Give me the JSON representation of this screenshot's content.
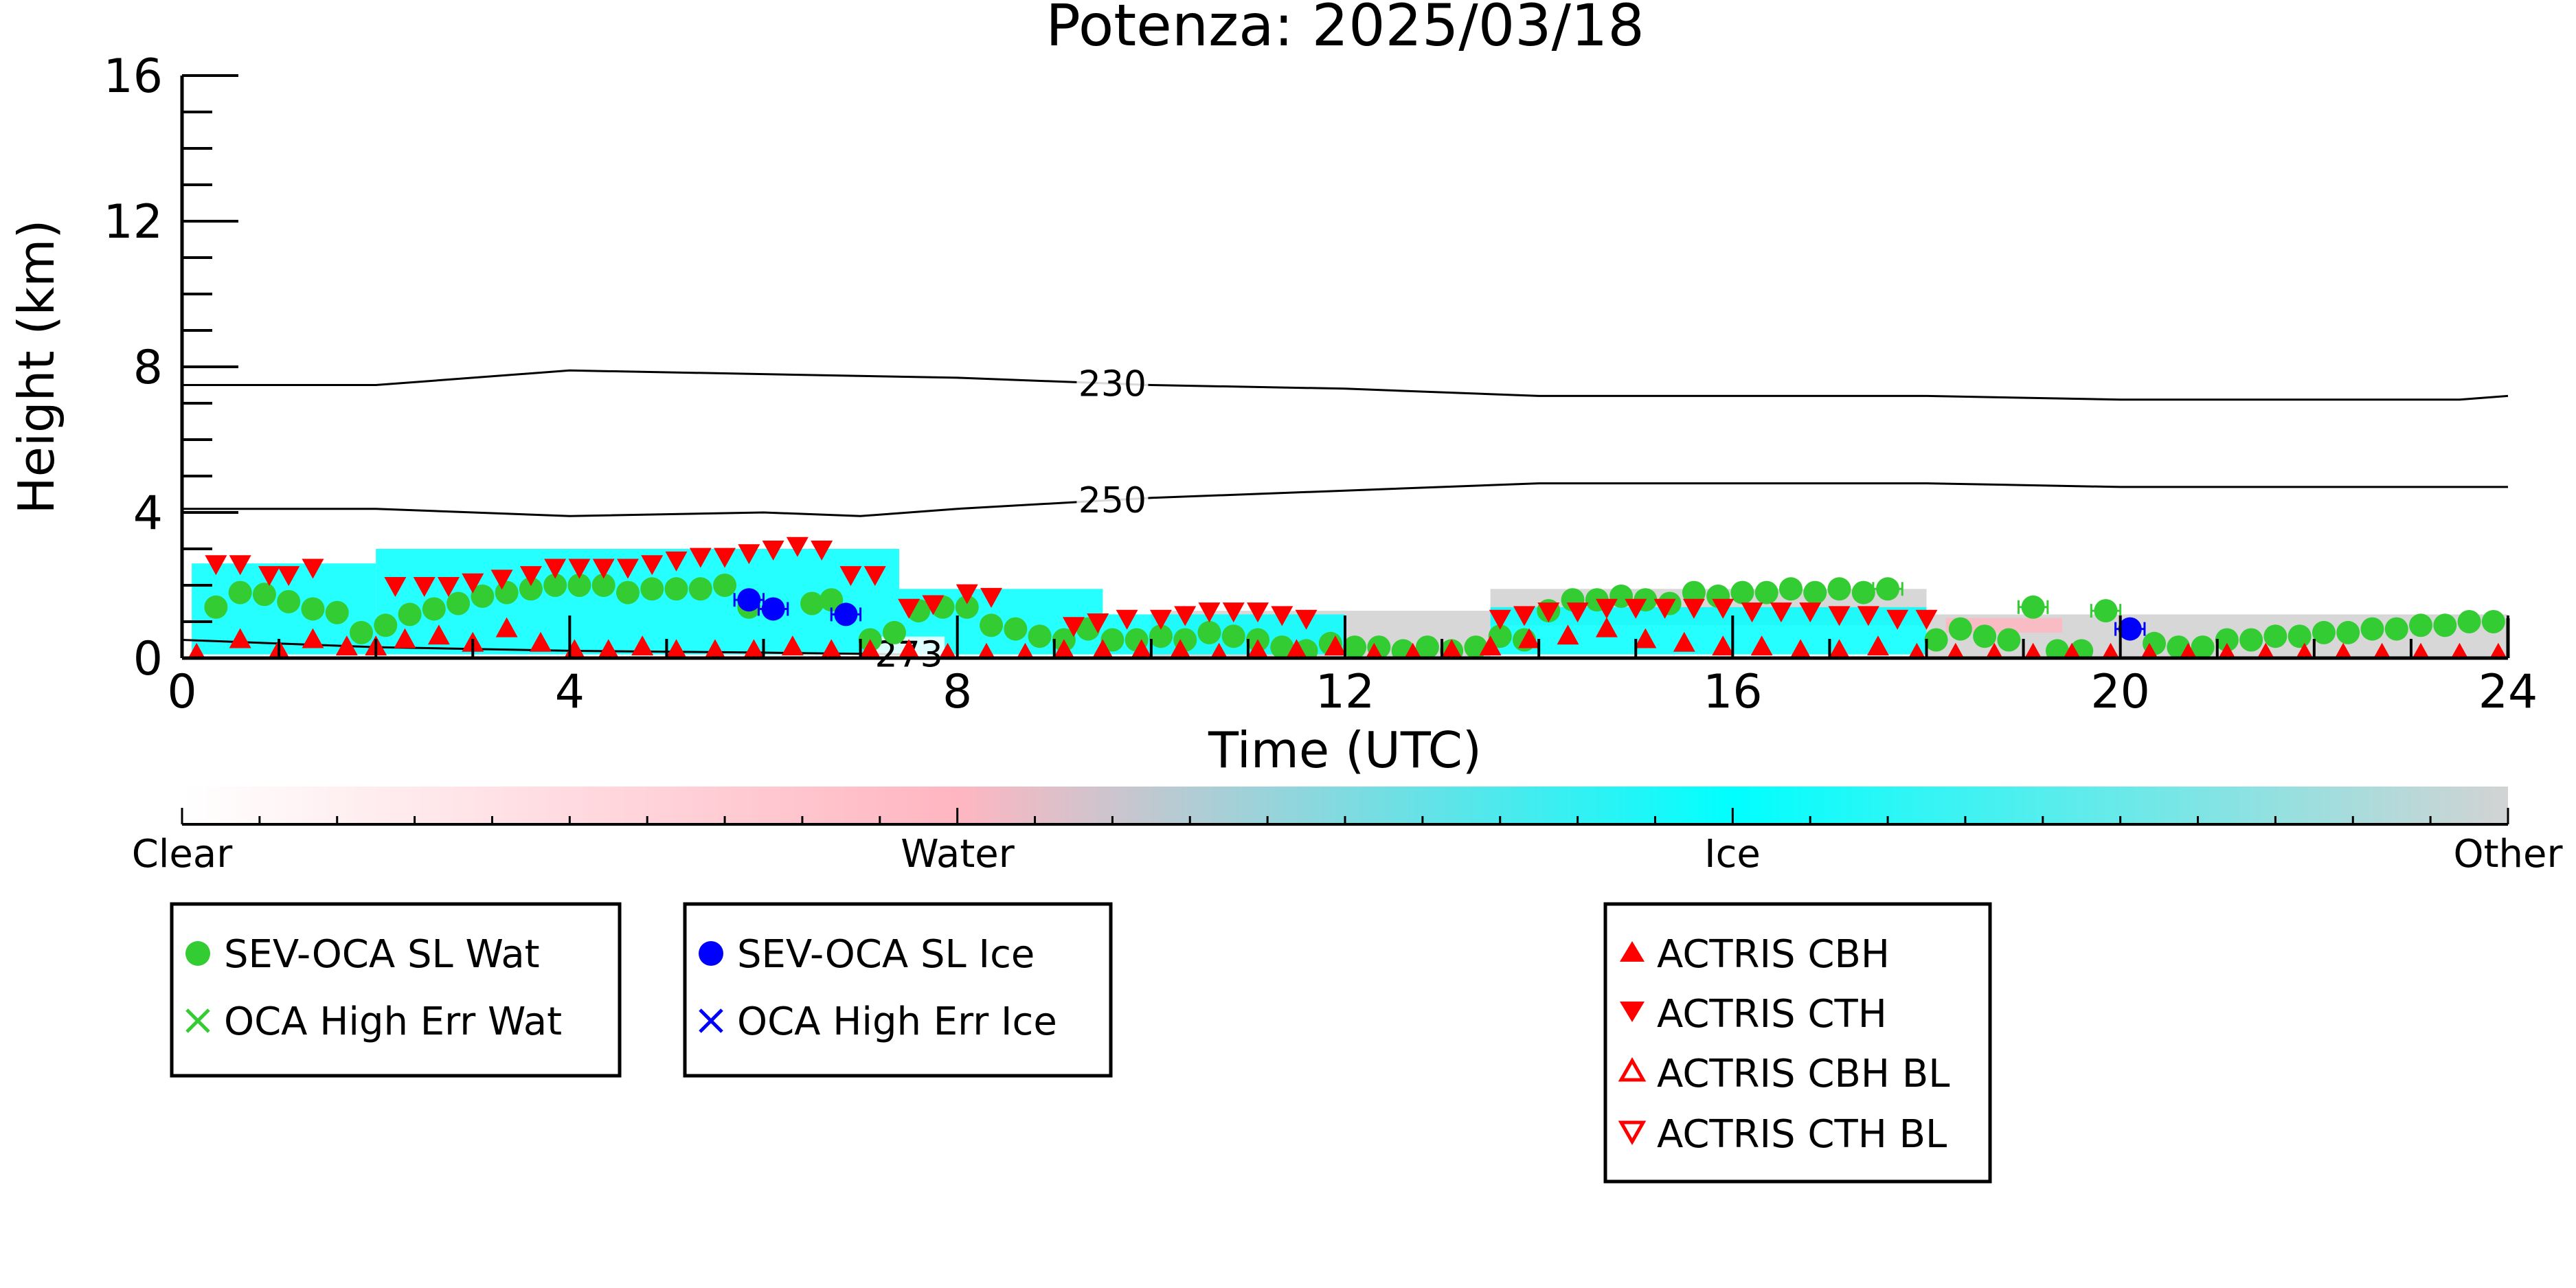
{
  "chart_data": {
    "type": "scatter",
    "title": "Potenza: 2025/03/18",
    "xlabel": "Time (UTC)",
    "ylabel": "Height (km)",
    "xlim": [
      0,
      24
    ],
    "ylim": [
      0,
      16
    ],
    "xticks": [
      0,
      4,
      8,
      12,
      16,
      20,
      24
    ],
    "yticks": [
      0,
      4,
      8,
      12,
      16
    ],
    "xtick_labels": [
      "0",
      "4",
      "8",
      "12",
      "16",
      "20",
      "24"
    ],
    "ytick_labels": [
      "0",
      "4",
      "8",
      "12",
      "16"
    ],
    "contours": [
      {
        "label": "230",
        "label_x": 9.6,
        "x": [
          0,
          2,
          4,
          6,
          8,
          10,
          12,
          14,
          16,
          18,
          20,
          22,
          23.5,
          24
        ],
        "y": [
          7.5,
          7.5,
          7.9,
          7.8,
          7.7,
          7.5,
          7.4,
          7.2,
          7.2,
          7.2,
          7.1,
          7.1,
          7.1,
          7.2
        ]
      },
      {
        "label": "250",
        "label_x": 9.6,
        "x": [
          0,
          2,
          4,
          6,
          7,
          8,
          10,
          12,
          14,
          16,
          18,
          20,
          22,
          24
        ],
        "y": [
          4.1,
          4.1,
          3.9,
          4.0,
          3.9,
          4.1,
          4.4,
          4.6,
          4.8,
          4.8,
          4.8,
          4.7,
          4.7,
          4.7
        ]
      },
      {
        "label": "273",
        "label_x": 7.5,
        "x": [
          0,
          2,
          4,
          6,
          7.5
        ],
        "y": [
          0.5,
          0.3,
          0.2,
          0.15,
          0.1
        ]
      }
    ],
    "cloud_mask": [
      {
        "phase": "Ice",
        "x": [
          0.1,
          2.0
        ],
        "y": [
          0.1,
          2.6
        ]
      },
      {
        "phase": "Ice",
        "x": [
          2.0,
          7.4
        ],
        "y": [
          0.1,
          3.0
        ]
      },
      {
        "phase": "Ice",
        "x": [
          7.4,
          9.5
        ],
        "y": [
          0.1,
          1.9
        ]
      },
      {
        "phase": "Ice",
        "x": [
          9.5,
          12.0
        ],
        "y": [
          0.1,
          1.2
        ]
      },
      {
        "phase": "Ice",
        "x": [
          13.5,
          18.0
        ],
        "y": [
          0.1,
          1.4
        ]
      },
      {
        "phase": "Other",
        "x": [
          10.0,
          13.5
        ],
        "y": [
          0.0,
          1.3
        ]
      },
      {
        "phase": "Other",
        "x": [
          13.5,
          18.0
        ],
        "y": [
          0.9,
          1.9
        ]
      },
      {
        "phase": "Other",
        "x": [
          18.0,
          24.0
        ],
        "y": [
          0.0,
          1.2
        ]
      },
      {
        "phase": "Water",
        "x": [
          18.2,
          19.4
        ],
        "y": [
          0.7,
          1.1
        ]
      }
    ],
    "series": [
      {
        "name": "SEV-OCA SL Wat",
        "marker": "circle",
        "color": "#33cc33",
        "x": [
          0.35,
          0.6,
          0.85,
          1.1,
          1.35,
          1.6,
          1.85,
          2.1,
          2.35,
          2.6,
          2.85,
          3.1,
          3.35,
          3.6,
          3.85,
          4.1,
          4.35,
          4.6,
          4.85,
          5.1,
          5.35,
          5.6,
          5.85,
          6.5,
          6.7,
          7.1,
          7.35,
          7.6,
          7.85,
          8.1,
          8.35,
          8.6,
          8.85,
          9.1,
          9.35,
          9.6,
          9.85,
          10.1,
          10.35,
          10.6,
          10.85,
          11.1,
          11.35,
          11.6,
          11.85,
          12.1,
          12.35,
          12.6,
          12.85,
          13.1,
          13.35,
          13.6,
          13.85,
          14.1,
          14.35,
          14.6,
          14.85,
          15.1,
          15.35,
          15.6,
          15.85,
          16.1,
          16.35,
          16.6,
          16.85,
          17.1,
          17.35,
          17.6,
          18.1,
          18.35,
          18.6,
          18.85,
          19.1,
          19.35,
          19.6,
          19.85,
          20.35,
          20.6,
          20.85,
          21.1,
          21.35,
          21.6,
          21.85,
          22.1,
          22.35,
          22.6,
          22.85,
          23.1,
          23.35,
          23.6,
          23.85
        ],
        "y": [
          1.4,
          1.8,
          1.75,
          1.55,
          1.35,
          1.25,
          0.7,
          0.9,
          1.2,
          1.35,
          1.5,
          1.7,
          1.8,
          1.9,
          2.0,
          2.0,
          2.0,
          1.8,
          1.9,
          1.9,
          1.9,
          2.0,
          1.4,
          1.5,
          1.6,
          0.5,
          0.7,
          1.3,
          1.4,
          1.4,
          0.9,
          0.8,
          0.6,
          0.5,
          0.8,
          0.5,
          0.5,
          0.6,
          0.5,
          0.7,
          0.6,
          0.5,
          0.3,
          0.2,
          0.4,
          0.3,
          0.3,
          0.2,
          0.3,
          0.2,
          0.3,
          0.6,
          0.5,
          1.3,
          1.6,
          1.6,
          1.7,
          1.6,
          1.5,
          1.8,
          1.7,
          1.8,
          1.8,
          1.9,
          1.8,
          1.9,
          1.8,
          1.9,
          0.5,
          0.8,
          0.6,
          0.5,
          1.4,
          0.2,
          0.2,
          1.3,
          0.4,
          0.3,
          0.3,
          0.5,
          0.5,
          0.6,
          0.6,
          0.7,
          0.7,
          0.8,
          0.8,
          0.9,
          0.9,
          1.0,
          1.0
        ],
        "error_x": [
          0.0,
          0.0,
          0.0,
          0.0,
          0.0,
          0.0,
          0.0,
          0.0,
          0.0,
          0.0,
          0.0,
          0.0,
          0.0,
          0.0,
          0.0,
          0.0,
          0.0,
          0.0,
          0.0,
          0.0,
          0.0,
          0.0,
          0.0,
          0.0,
          0.0,
          0.0,
          0.0,
          0.0,
          0.0,
          0.0,
          0.0,
          0.0,
          0.0,
          0.0,
          0.0,
          0.0,
          0.0,
          0.0,
          0.0,
          0.0,
          0.0,
          0.0,
          0.0,
          0.0,
          0.0,
          0.0,
          0.0,
          0.0,
          0.0,
          0.0,
          0.0,
          0.0,
          0.0,
          0.0,
          0.0,
          0.0,
          0.0,
          0.0,
          0.0,
          0.0,
          0.0,
          0.0,
          0.0,
          0.0,
          0.0,
          0.0,
          0.0,
          0.15,
          0.0,
          0.0,
          0.0,
          0.0,
          0.15,
          0.0,
          0.0,
          0.15,
          0.0,
          0.0,
          0.0,
          0.0,
          0.0,
          0.0,
          0.0,
          0.0,
          0.0,
          0.0,
          0.0,
          0.0,
          0.0,
          0.0,
          0.0
        ]
      },
      {
        "name": "SEV-OCA SL Ice",
        "marker": "circle",
        "color": "#0000ff",
        "x": [
          5.85,
          6.1,
          6.85,
          20.1
        ],
        "y": [
          1.6,
          1.35,
          1.2,
          0.8
        ],
        "error_x": [
          0.15,
          0.15,
          0.15,
          0.15
        ]
      },
      {
        "name": "ACTRIS CBH",
        "marker": "triangle-up",
        "color": "#ff0000",
        "x": [
          0.15,
          0.6,
          1.0,
          1.35,
          1.7,
          2.0,
          2.3,
          2.65,
          3.0,
          3.35,
          3.7,
          4.05,
          4.4,
          4.75,
          5.1,
          5.5,
          5.9,
          6.3,
          6.7,
          7.1,
          7.5,
          7.9,
          8.3,
          8.7,
          9.1,
          9.5,
          9.9,
          10.3,
          10.7,
          11.1,
          11.5,
          11.9,
          12.3,
          12.7,
          13.1,
          13.5,
          13.9,
          14.3,
          14.7,
          15.1,
          15.5,
          15.9,
          16.3,
          16.7,
          17.1,
          17.5,
          17.9,
          18.3,
          18.7,
          19.1,
          19.5,
          19.9,
          20.3,
          20.7,
          21.1,
          21.5,
          21.9,
          22.3,
          22.7,
          23.1,
          23.5,
          23.9
        ],
        "y": [
          0.1,
          0.5,
          0.2,
          0.5,
          0.3,
          0.3,
          0.5,
          0.6,
          0.4,
          0.8,
          0.4,
          0.2,
          0.2,
          0.3,
          0.2,
          0.2,
          0.2,
          0.3,
          0.2,
          0.2,
          0.2,
          0.1,
          0.1,
          0.1,
          0.2,
          0.2,
          0.2,
          0.2,
          0.1,
          0.2,
          0.2,
          0.3,
          0.1,
          0.1,
          0.2,
          0.3,
          0.5,
          0.6,
          0.8,
          0.5,
          0.4,
          0.3,
          0.3,
          0.2,
          0.2,
          0.3,
          0.1,
          0.1,
          0.1,
          0.1,
          0.1,
          0.1,
          0.1,
          0.1,
          0.1,
          0.1,
          0.1,
          0.1,
          0.1,
          0.1,
          0.1,
          0.1
        ]
      },
      {
        "name": "ACTRIS CTH",
        "marker": "triangle-down",
        "color": "#ff0000",
        "x": [
          0.35,
          0.6,
          0.9,
          1.1,
          1.35,
          2.2,
          2.5,
          2.75,
          3.0,
          3.3,
          3.6,
          3.85,
          4.1,
          4.35,
          4.6,
          4.85,
          5.1,
          5.35,
          5.6,
          5.85,
          6.1,
          6.35,
          6.6,
          6.9,
          7.15,
          7.5,
          7.75,
          8.1,
          8.35,
          9.2,
          9.45,
          9.75,
          10.1,
          10.35,
          10.6,
          10.85,
          11.1,
          11.35,
          11.6,
          13.6,
          13.85,
          14.1,
          14.4,
          14.7,
          15.0,
          15.3,
          15.6,
          15.9,
          16.2,
          16.5,
          16.8,
          17.1,
          17.4,
          17.7,
          18.0
        ],
        "y": [
          2.6,
          2.6,
          2.3,
          2.3,
          2.5,
          2.0,
          2.0,
          2.0,
          2.1,
          2.2,
          2.3,
          2.5,
          2.5,
          2.5,
          2.5,
          2.6,
          2.7,
          2.8,
          2.8,
          2.9,
          3.0,
          3.1,
          3.0,
          2.3,
          2.3,
          1.4,
          1.5,
          1.8,
          1.7,
          0.9,
          1.0,
          1.1,
          1.1,
          1.2,
          1.3,
          1.3,
          1.3,
          1.2,
          1.1,
          1.1,
          1.2,
          1.3,
          1.3,
          1.4,
          1.4,
          1.4,
          1.4,
          1.4,
          1.3,
          1.3,
          1.3,
          1.2,
          1.2,
          1.1,
          1.1
        ]
      }
    ],
    "colorbar": {
      "labels": [
        "Clear",
        "Water",
        "Ice",
        "Other"
      ],
      "stops": [
        "#ffffff",
        "#ffb6c1",
        "#00ffff",
        "#d3d3d3"
      ]
    },
    "legends": [
      {
        "entries": [
          {
            "label": "SEV-OCA SL Wat",
            "marker": "circle",
            "color": "#33cc33"
          },
          {
            "label": "OCA High Err Wat",
            "marker": "x",
            "color": "#33cc33"
          }
        ]
      },
      {
        "entries": [
          {
            "label": "SEV-OCA SL Ice",
            "marker": "circle",
            "color": "#0000ff"
          },
          {
            "label": "OCA High Err Ice",
            "marker": "x",
            "color": "#0000ff"
          }
        ]
      },
      {
        "entries": [
          {
            "label": "ACTRIS CBH",
            "marker": "triangle-up",
            "color": "#ff0000"
          },
          {
            "label": "ACTRIS CTH",
            "marker": "triangle-down",
            "color": "#ff0000"
          },
          {
            "label": "ACTRIS CBH BL",
            "marker": "triangle-up-open",
            "color": "#ff0000"
          },
          {
            "label": "ACTRIS CTH BL",
            "marker": "triangle-down-open",
            "color": "#ff0000"
          }
        ]
      }
    ],
    "colors": {
      "water": "#ffb6c1",
      "ice": "#00ffff",
      "other": "#d3d3d3",
      "sev_water": "#33cc33",
      "sev_ice": "#0000ff",
      "actris": "#ff0000"
    }
  }
}
